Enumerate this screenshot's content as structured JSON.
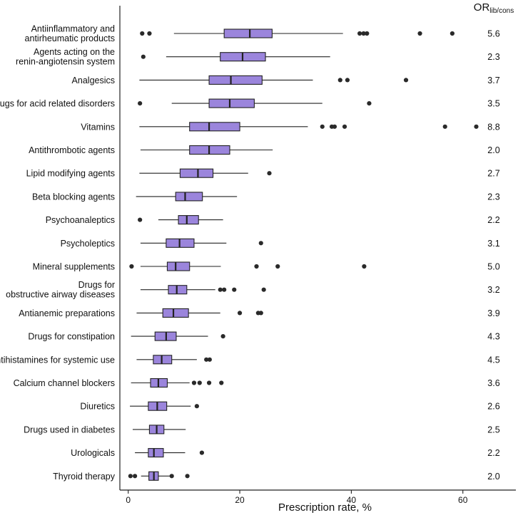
{
  "chart_data": {
    "type": "boxplot",
    "xlabel": "Prescription rate, %",
    "xlim": [
      -1.5,
      69.5
    ],
    "xticks": [
      0,
      20,
      40,
      60
    ],
    "or_header": {
      "main": "OR",
      "sub": "lib/cons"
    },
    "colors": {
      "box": "#9B85DC",
      "line": "#222222",
      "point": "#2a2a2a"
    },
    "categories": [
      {
        "label": [
          "Antiinflammatory and",
          "antirheumatic products"
        ],
        "or": "5.6",
        "wlo": 8.2,
        "q1": 17.2,
        "med": 21.8,
        "q3": 25.8,
        "whi": 38.5,
        "outliers": [
          2.5,
          3.8,
          41.5,
          42.2,
          42.8,
          52.3,
          58.1
        ]
      },
      {
        "label": [
          "Agents acting on the",
          "renin-angiotensin system"
        ],
        "or": "2.3",
        "wlo": 6.8,
        "q1": 16.5,
        "med": 20.5,
        "q3": 24.6,
        "whi": 36.2,
        "outliers": [
          2.7
        ]
      },
      {
        "label": [
          "Analgesics"
        ],
        "or": "3.7",
        "wlo": 2.0,
        "q1": 14.5,
        "med": 18.4,
        "q3": 24.0,
        "whi": 33.1,
        "outliers": [
          38.0,
          39.3,
          49.8
        ]
      },
      {
        "label": [
          "Drugs for acid related disorders"
        ],
        "or": "3.5",
        "wlo": 7.8,
        "q1": 14.5,
        "med": 18.2,
        "q3": 22.6,
        "whi": 34.8,
        "outliers": [
          2.1,
          43.2
        ]
      },
      {
        "label": [
          "Vitamins"
        ],
        "or": "8.8",
        "wlo": 2.0,
        "q1": 11.0,
        "med": 14.5,
        "q3": 20.0,
        "whi": 32.2,
        "outliers": [
          34.8,
          36.5,
          37.0,
          38.8,
          56.8,
          62.4
        ]
      },
      {
        "label": [
          "Antithrombotic agents"
        ],
        "or": "2.0",
        "wlo": 2.2,
        "q1": 11.0,
        "med": 14.5,
        "q3": 18.2,
        "whi": 25.9,
        "outliers": []
      },
      {
        "label": [
          "Lipid modifying agents"
        ],
        "or": "2.7",
        "wlo": 2.0,
        "q1": 9.3,
        "med": 12.5,
        "q3": 15.2,
        "whi": 21.5,
        "outliers": [
          25.3
        ]
      },
      {
        "label": [
          "Beta blocking agents"
        ],
        "or": "2.3",
        "wlo": 1.4,
        "q1": 8.5,
        "med": 10.2,
        "q3": 13.3,
        "whi": 19.5,
        "outliers": []
      },
      {
        "label": [
          "Psychoanaleptics"
        ],
        "or": "2.2",
        "wlo": 5.4,
        "q1": 9.0,
        "med": 10.5,
        "q3": 12.6,
        "whi": 17.0,
        "outliers": [
          2.1
        ]
      },
      {
        "label": [
          "Psycholeptics"
        ],
        "or": "3.1",
        "wlo": 2.2,
        "q1": 6.8,
        "med": 9.2,
        "q3": 11.8,
        "whi": 17.6,
        "outliers": [
          23.8
        ]
      },
      {
        "label": [
          "Mineral supplements"
        ],
        "or": "5.0",
        "wlo": 2.2,
        "q1": 7.0,
        "med": 8.5,
        "q3": 11.0,
        "whi": 16.6,
        "outliers": [
          0.6,
          23.0,
          26.8,
          42.3
        ]
      },
      {
        "label": [
          "Drugs for",
          "obstructive airway diseases"
        ],
        "or": "3.2",
        "wlo": 2.2,
        "q1": 7.2,
        "med": 8.7,
        "q3": 10.5,
        "whi": 15.6,
        "outliers": [
          16.5,
          17.2,
          19.0,
          24.3
        ]
      },
      {
        "label": [
          "Antianemic preparations"
        ],
        "or": "3.9",
        "wlo": 1.5,
        "q1": 6.2,
        "med": 8.1,
        "q3": 10.8,
        "whi": 16.5,
        "outliers": [
          20.0,
          23.3,
          23.8
        ]
      },
      {
        "label": [
          "Drugs for constipation"
        ],
        "or": "4.3",
        "wlo": 0.5,
        "q1": 4.8,
        "med": 6.8,
        "q3": 8.6,
        "whi": 14.3,
        "outliers": [
          17.0
        ]
      },
      {
        "label": [
          "Antihistamines for systemic use"
        ],
        "or": "4.5",
        "wlo": 1.5,
        "q1": 4.5,
        "med": 6.0,
        "q3": 7.8,
        "whi": 12.3,
        "outliers": [
          14.0,
          14.6
        ]
      },
      {
        "label": [
          "Calcium channel blockers"
        ],
        "or": "3.6",
        "wlo": 0.5,
        "q1": 4.0,
        "med": 5.4,
        "q3": 7.0,
        "whi": 11.0,
        "outliers": [
          11.8,
          12.8,
          14.5,
          16.7
        ]
      },
      {
        "label": [
          "Diuretics"
        ],
        "or": "2.6",
        "wlo": 0.3,
        "q1": 3.6,
        "med": 5.2,
        "q3": 6.9,
        "whi": 11.2,
        "outliers": [
          12.3
        ]
      },
      {
        "label": [
          "Drugs used in diabetes"
        ],
        "or": "2.5",
        "wlo": 0.8,
        "q1": 3.8,
        "med": 5.1,
        "q3": 6.4,
        "whi": 10.3,
        "outliers": []
      },
      {
        "label": [
          "Urologicals"
        ],
        "or": "2.2",
        "wlo": 1.2,
        "q1": 3.6,
        "med": 4.6,
        "q3": 6.3,
        "whi": 10.2,
        "outliers": [
          13.2
        ]
      },
      {
        "label": [
          "Thyroid therapy"
        ],
        "or": "2.0",
        "wlo": 2.3,
        "q1": 3.7,
        "med": 4.6,
        "q3": 5.4,
        "whi": 7.6,
        "outliers": [
          0.4,
          1.2,
          7.8,
          10.6
        ]
      }
    ]
  }
}
